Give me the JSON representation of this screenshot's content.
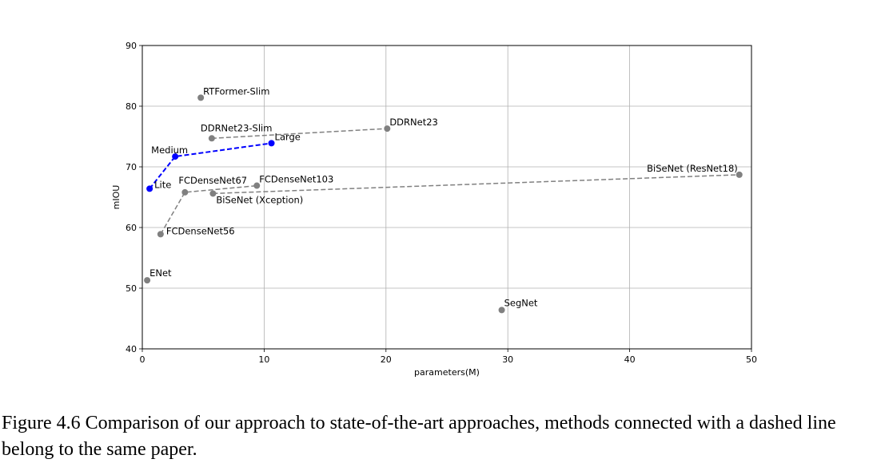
{
  "chart_data": {
    "type": "scatter",
    "xlabel": "parameters(M)",
    "ylabel": "mIOU",
    "xlim": [
      0,
      50
    ],
    "ylim": [
      40,
      90
    ],
    "xticks": [
      0,
      10,
      20,
      30,
      40,
      50
    ],
    "yticks": [
      40,
      50,
      60,
      70,
      80,
      90
    ],
    "grid": true,
    "points": [
      {
        "label": "RTFormer-Slim",
        "x": 4.8,
        "y": 81.4,
        "color": "#808080"
      },
      {
        "label": "DDRNet23-Slim",
        "x": 5.7,
        "y": 74.7,
        "color": "#808080"
      },
      {
        "label": "DDRNet23",
        "x": 20.1,
        "y": 76.3,
        "color": "#808080"
      },
      {
        "label": "Lite",
        "x": 0.6,
        "y": 66.4,
        "color": "#0000ff"
      },
      {
        "label": "Medium",
        "x": 2.7,
        "y": 71.7,
        "color": "#0000ff"
      },
      {
        "label": "Large",
        "x": 10.6,
        "y": 73.9,
        "color": "#0000ff"
      },
      {
        "label": "FCDenseNet56",
        "x": 1.5,
        "y": 58.9,
        "color": "#808080"
      },
      {
        "label": "FCDenseNet67",
        "x": 3.5,
        "y": 65.8,
        "color": "#808080"
      },
      {
        "label": "FCDenseNet103",
        "x": 9.4,
        "y": 66.9,
        "color": "#808080"
      },
      {
        "label": "BiSeNet (Xception)",
        "x": 5.8,
        "y": 65.6,
        "color": "#808080"
      },
      {
        "label": "BiSeNet (ResNet18)",
        "x": 49.0,
        "y": 68.7,
        "color": "#808080"
      },
      {
        "label": "ENet",
        "x": 0.4,
        "y": 51.3,
        "color": "#808080"
      },
      {
        "label": "SegNet",
        "x": 29.5,
        "y": 46.4,
        "color": "#808080"
      }
    ],
    "series": [
      {
        "points": [
          "Lite",
          "Medium",
          "Large"
        ],
        "color": "#0000ff",
        "style": "dashed"
      },
      {
        "points": [
          "DDRNet23-Slim",
          "DDRNet23"
        ],
        "color": "#808080",
        "style": "dashed"
      },
      {
        "points": [
          "FCDenseNet56",
          "FCDenseNet67",
          "FCDenseNet103"
        ],
        "color": "#808080",
        "style": "dashed"
      },
      {
        "points": [
          "BiSeNet (Xception)",
          "BiSeNet (ResNet18)"
        ],
        "color": "#808080",
        "style": "dashed"
      }
    ]
  },
  "caption": "Figure 4.6 Comparison of our approach to state-of-the-art approaches, methods connected with a dashed line belong to the same paper."
}
